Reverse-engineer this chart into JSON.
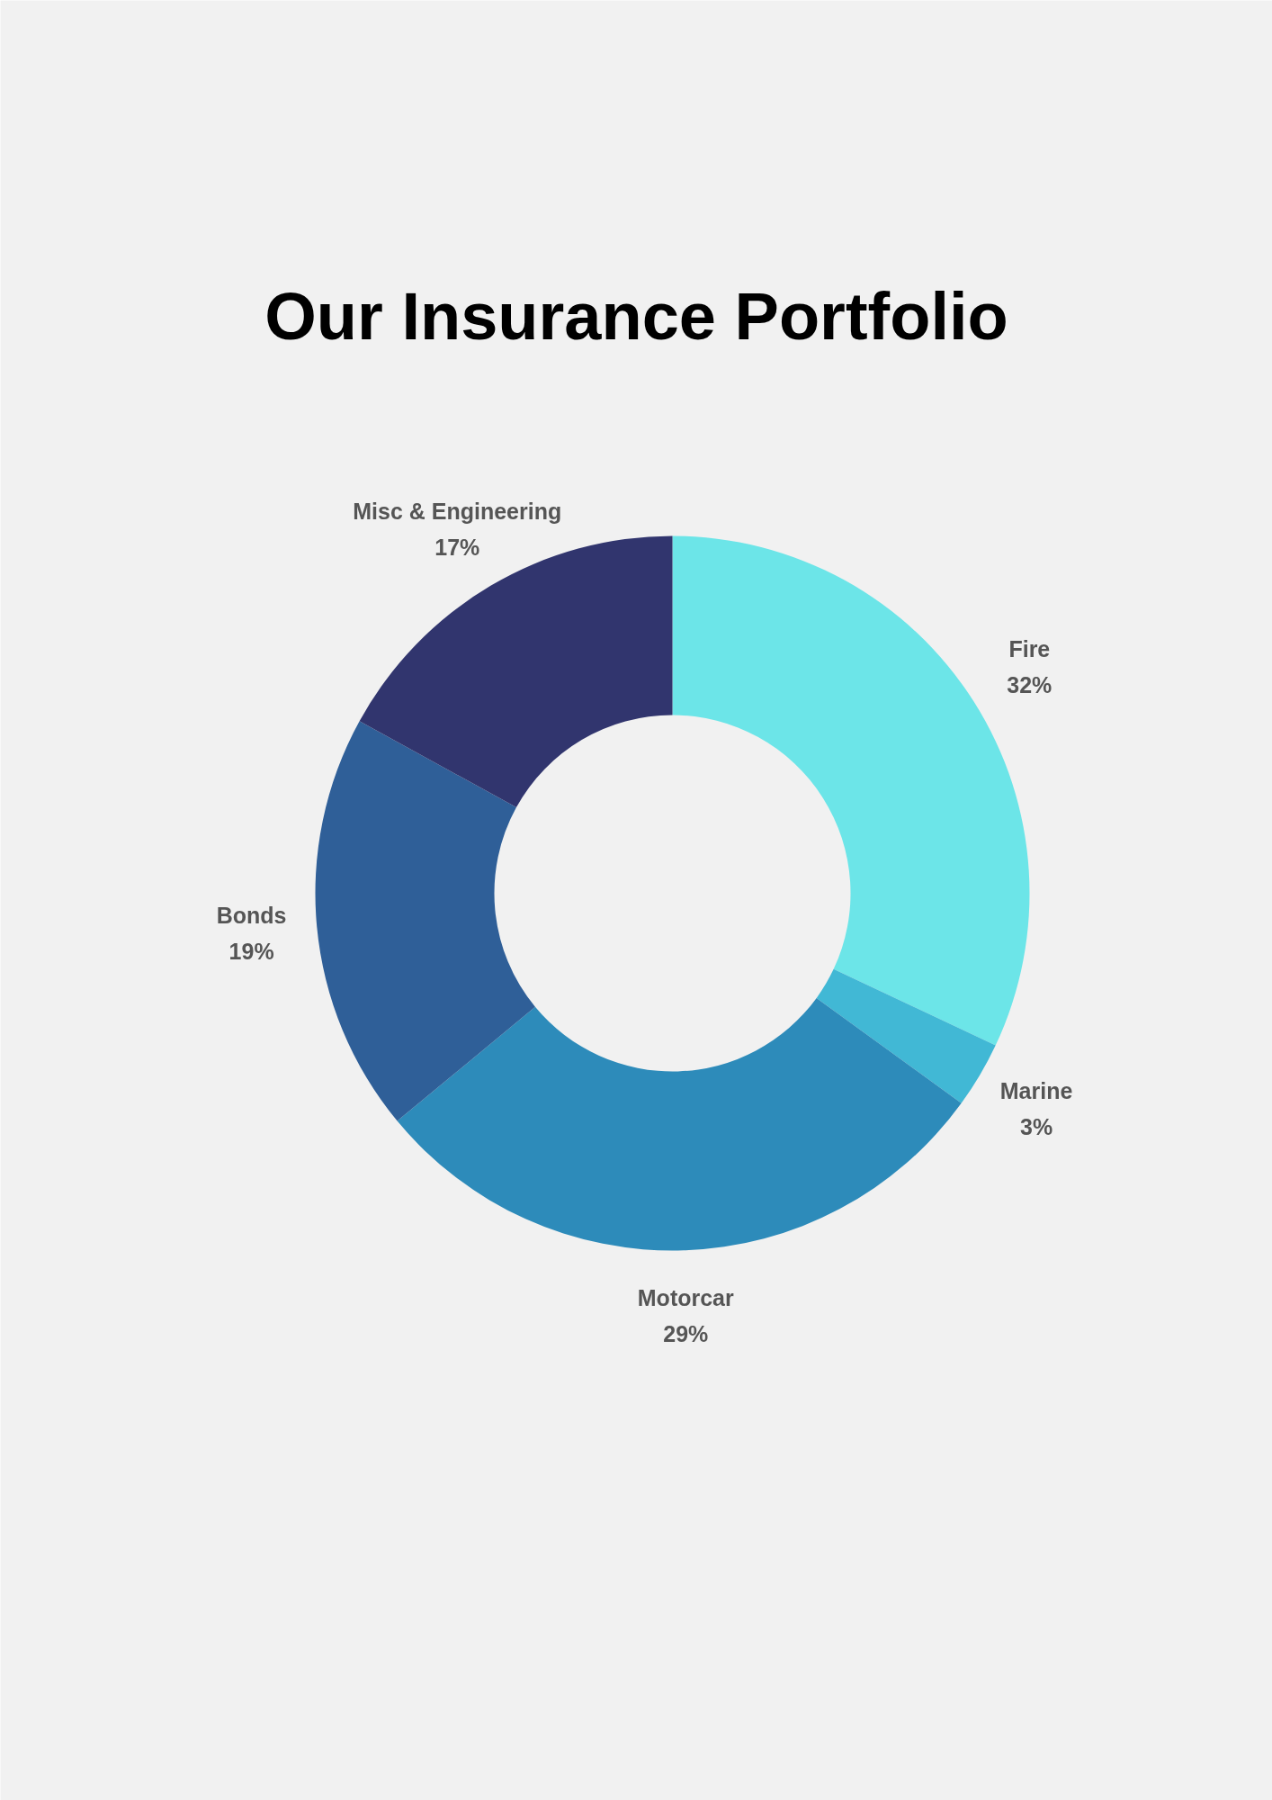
{
  "chart_data": {
    "type": "donut",
    "title": "Our Insurance Portfolio",
    "categories": [
      "Fire",
      "Marine",
      "Motorcar",
      "Bonds",
      "Misc & Engineering"
    ],
    "values": [
      32,
      3,
      29,
      19,
      17
    ],
    "value_labels": [
      "32%",
      "3%",
      "29%",
      "19%",
      "17%"
    ],
    "colors": [
      "#6ce5e8",
      "#41b8d5",
      "#2d8bba",
      "#2f5f98",
      "#31356e"
    ],
    "legend": false
  }
}
